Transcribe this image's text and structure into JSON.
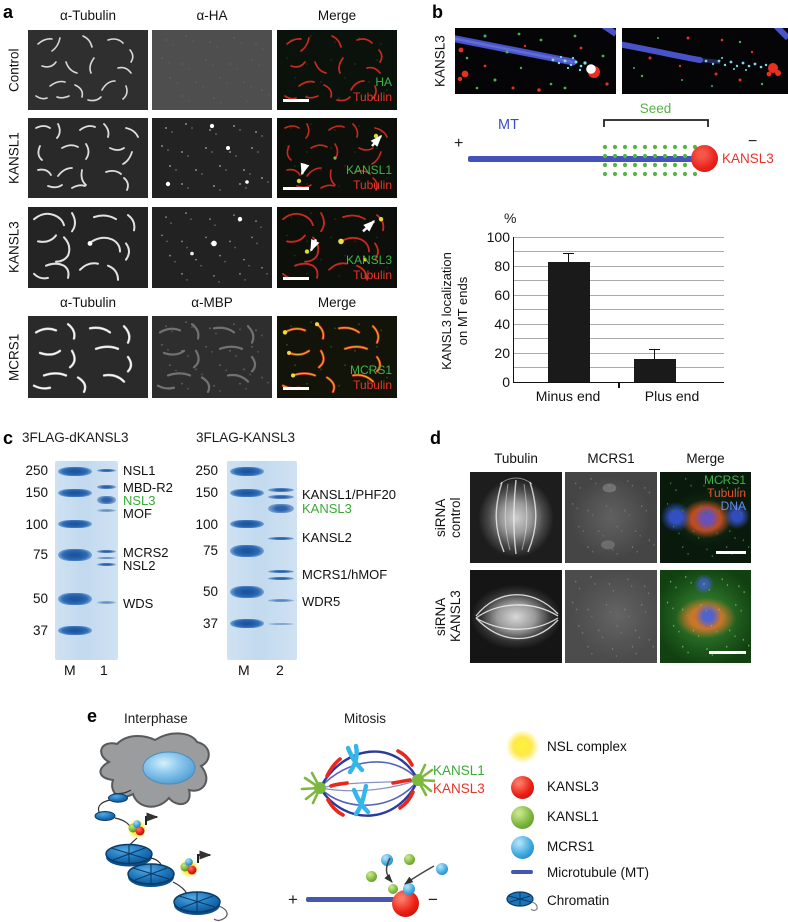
{
  "colors": {
    "label_green": "#3aaa35",
    "label_red": "#e73428",
    "mt_blue": "#4353bb",
    "seed_green": "#55b544",
    "gel_band_blue": "#2a66b2",
    "bar_black": "#1a1a1a",
    "dna_blue": "#6b8ce8"
  },
  "panel_a": {
    "label": "a",
    "headers_top": [
      "α-Tubulin",
      "α-HA",
      "Merge"
    ],
    "headers_bottom": [
      "α-Tubulin",
      "α-MBP",
      "Merge"
    ],
    "rows": [
      {
        "name": "Control",
        "merge_line1": "HA",
        "merge_line2": "Tubulin"
      },
      {
        "name": "KANSL1",
        "merge_line1": "KANSL1",
        "merge_line2": "Tubulin"
      },
      {
        "name": "KANSL3",
        "merge_line1": "KANSL3",
        "merge_line2": "Tubulin"
      },
      {
        "name": "MCRS1",
        "merge_line1": "MCRS1",
        "merge_line2": "Tubulin"
      }
    ]
  },
  "panel_b": {
    "label": "b",
    "row_label": "KANSL3",
    "diagram": {
      "seed_label": "Seed",
      "mt_label": "MT",
      "plus": "+",
      "minus": "−",
      "kansl3_label": "KANSL3"
    }
  },
  "chart_data": {
    "type": "bar",
    "categories": [
      "Minus end",
      "Plus end"
    ],
    "values": [
      83,
      16
    ],
    "errors": [
      5,
      6
    ],
    "unit_label": "%",
    "ylabel": "KANSL3 localization on MT ends",
    "xlabel": "",
    "title": "",
    "ylim": [
      0,
      100
    ],
    "yticks": [
      0,
      20,
      40,
      60,
      80,
      100
    ],
    "gridlines_every": 10,
    "grid": true,
    "bar_color": "#1a1a1a",
    "legend_position": "none"
  },
  "panel_c": {
    "label": "c",
    "gels": [
      {
        "title": "3FLAG-dKANSL3",
        "mw_markers": [
          "250",
          "150",
          "100",
          "75",
          "50",
          "37"
        ],
        "lane_labels": [
          "M",
          "1"
        ],
        "band_labels": [
          {
            "text": "NSL1",
            "highlight": false
          },
          {
            "text": "MBD-R2",
            "highlight": false
          },
          {
            "text": "NSL3",
            "highlight": true
          },
          {
            "text": "MOF",
            "highlight": false
          },
          {
            "text": "MCRS2",
            "highlight": false
          },
          {
            "text": "NSL2",
            "highlight": false
          },
          {
            "text": "WDS",
            "highlight": false
          }
        ]
      },
      {
        "title": "3FLAG-KANSL3",
        "mw_markers": [
          "250",
          "150",
          "100",
          "75",
          "50",
          "37"
        ],
        "lane_labels": [
          "M",
          "2"
        ],
        "band_labels": [
          {
            "text": "KANSL1/PHF20",
            "highlight": false
          },
          {
            "text": "KANSL3",
            "highlight": true
          },
          {
            "text": "KANSL2",
            "highlight": false
          },
          {
            "text": "MCRS1/hMOF",
            "highlight": false
          },
          {
            "text": "WDR5",
            "highlight": false
          }
        ]
      }
    ]
  },
  "panel_d": {
    "label": "d",
    "headers": [
      "Tubulin",
      "MCRS1",
      "Merge"
    ],
    "rows": [
      {
        "line1": "siRNA",
        "line2": "control"
      },
      {
        "line1": "siRNA",
        "line2": "KANSL3"
      }
    ],
    "merge_overlay": [
      "MCRS1",
      "Tubulin",
      "DNA"
    ]
  },
  "panel_e": {
    "label": "e",
    "interphase_title": "Interphase",
    "mitosis_title": "Mitosis",
    "spindle_label_green": "KANSL1",
    "spindle_label_red": "KANSL3",
    "plus": "+",
    "minus": "−",
    "legend": [
      {
        "label": "NSL complex"
      },
      {
        "label": "KANSL3"
      },
      {
        "label": "KANSL1"
      },
      {
        "label": "MCRS1"
      },
      {
        "label": "Microtubule (MT)"
      },
      {
        "label": "Chromatin"
      }
    ]
  }
}
